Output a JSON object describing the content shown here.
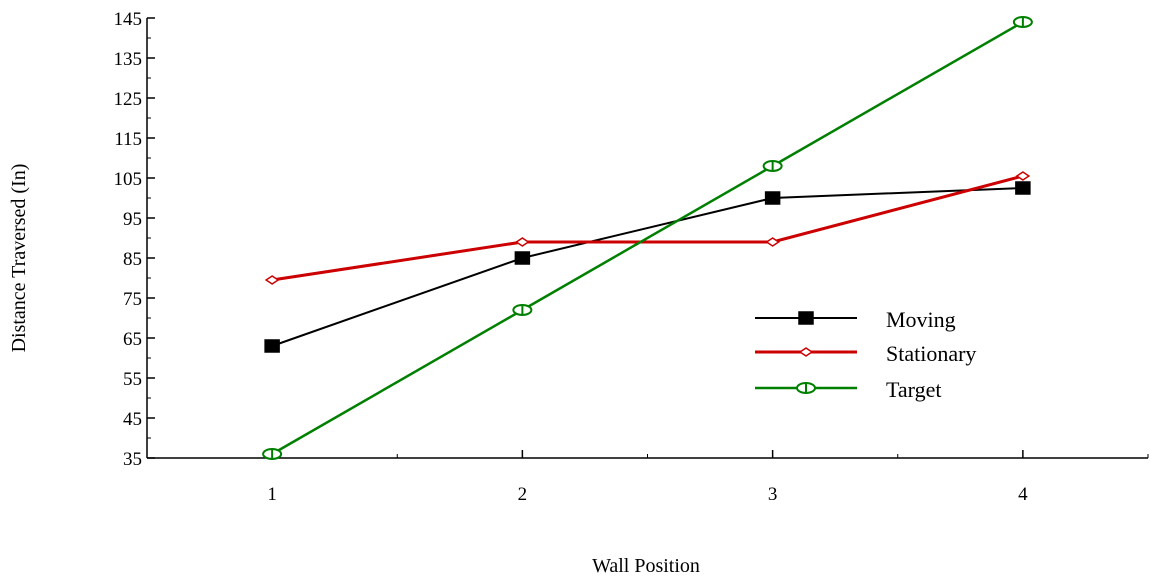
{
  "chart_data": {
    "type": "line",
    "title": "",
    "xlabel": "Wall Position",
    "ylabel": "Distance Traversed (In)",
    "x": [
      1,
      2,
      3,
      4
    ],
    "xticks": [
      1,
      2,
      3,
      4
    ],
    "xlim": [
      0.5,
      4.5
    ],
    "ylim": [
      35,
      145
    ],
    "yticks": [
      35,
      45,
      55,
      65,
      75,
      85,
      95,
      105,
      115,
      125,
      135,
      145
    ],
    "grid": false,
    "legend_position": "right",
    "series": [
      {
        "name": "Moving",
        "values": [
          63,
          85,
          100,
          102.5
        ],
        "color": "#000000",
        "marker": "square"
      },
      {
        "name": "Stationary",
        "values": [
          79.5,
          89,
          89,
          105.5
        ],
        "color": "#cc0000",
        "marker": "diamond"
      },
      {
        "name": "Target",
        "values": [
          36,
          72,
          108,
          144
        ],
        "color": "#008000",
        "marker": "circle-bar"
      }
    ]
  }
}
